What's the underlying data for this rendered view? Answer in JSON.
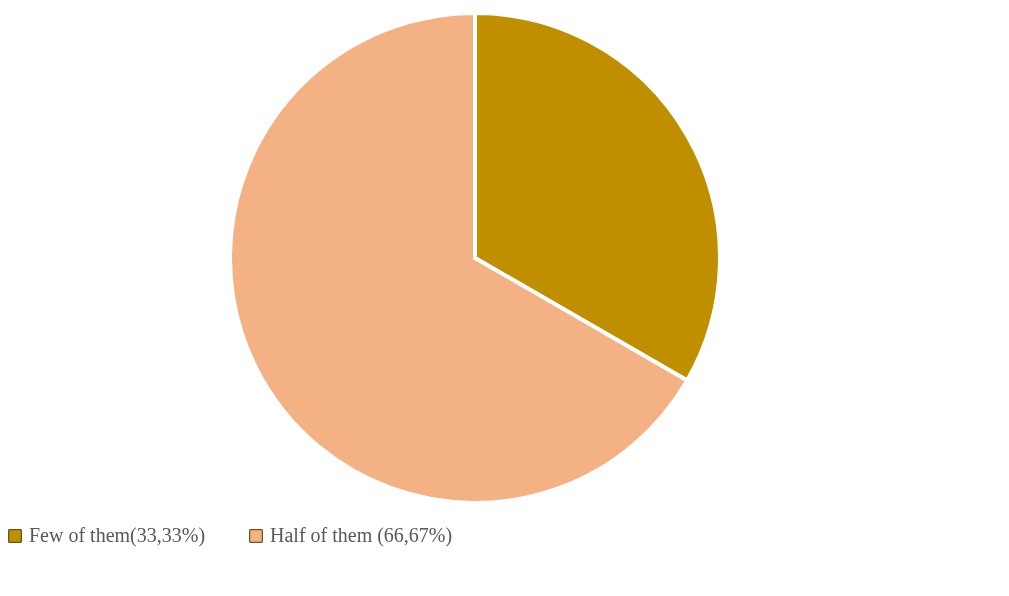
{
  "chart_data": {
    "type": "pie",
    "categories": [
      "Few of them(33,33%)",
      "Half of them (66,67%)"
    ],
    "values": [
      33.33,
      66.67
    ],
    "colors": [
      "#bf8f00",
      "#f4b183"
    ],
    "legend": "bottom"
  }
}
